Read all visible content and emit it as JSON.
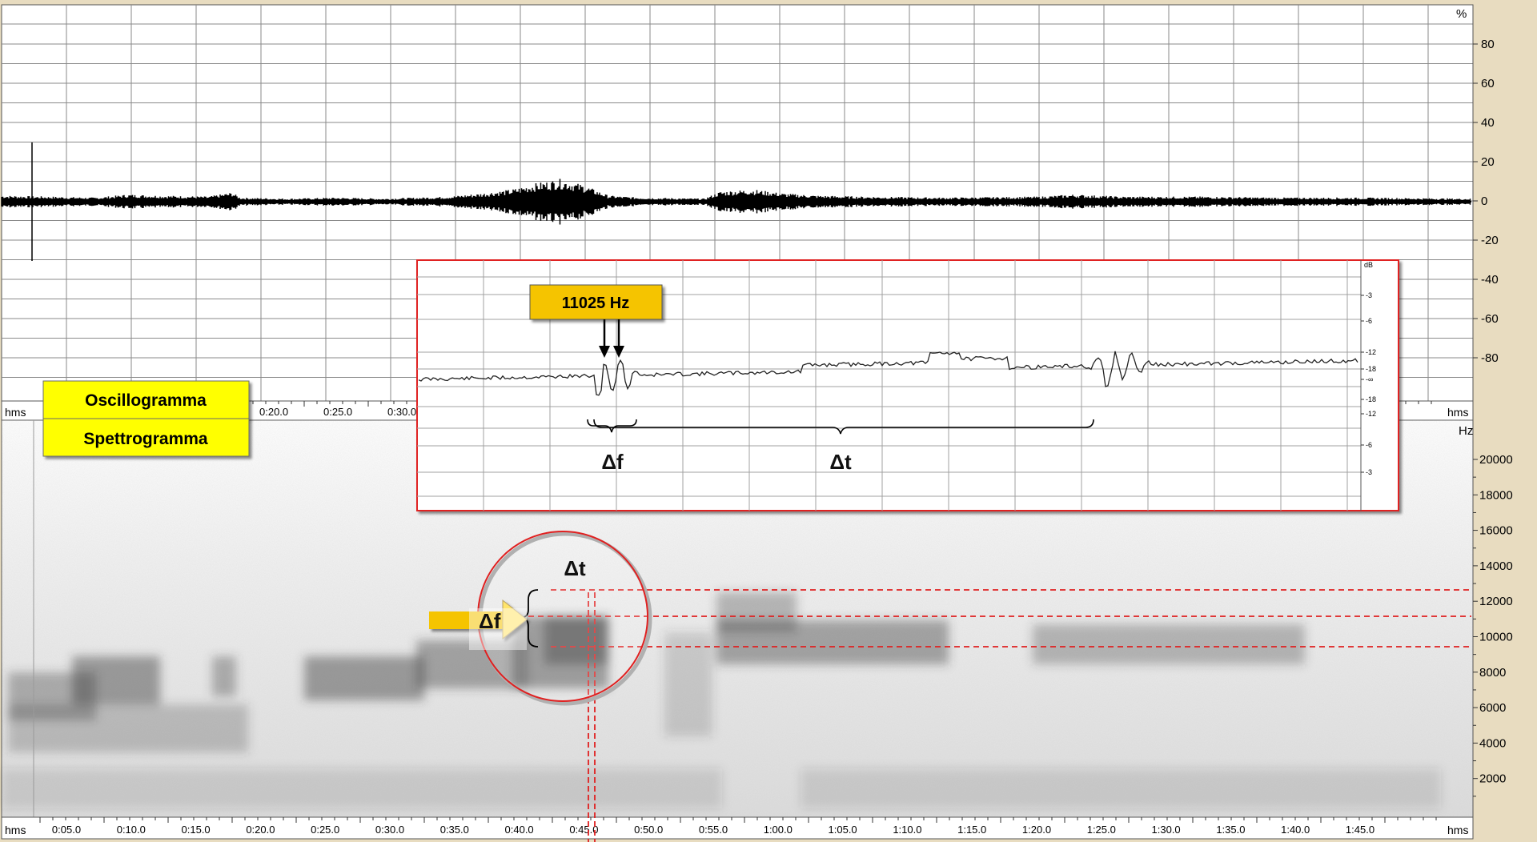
{
  "oscillogram": {
    "amplitude_unit": "%",
    "amplitude_ticks": [
      "80",
      "60",
      "40",
      "20",
      "0",
      "-20",
      "-40",
      "-60",
      "-80"
    ],
    "time_unit": "hms",
    "time_ticks": [
      "0:20.0",
      "0:25.0",
      "0:30.0"
    ]
  },
  "spectrogram": {
    "frequency_unit": "Hz",
    "frequency_ticks": [
      "20000",
      "18000",
      "16000",
      "14000",
      "12000",
      "10000",
      "8000",
      "6000",
      "4000",
      "2000"
    ],
    "time_unit": "hms",
    "time_ticks": [
      "0:05.0",
      "0:10.0",
      "0:15.0",
      "0:20.0",
      "0:25.0",
      "0:30.0",
      "0:35.0",
      "0:40.0",
      "0:45.0",
      "0:50.0",
      "0:55.0",
      "1:00.0",
      "1:05.0",
      "1:10.0",
      "1:15.0",
      "1:20.0",
      "1:25.0",
      "1:30.0",
      "1:35.0",
      "1:40.0",
      "1:45.0"
    ]
  },
  "labels": {
    "oscillogram": "Oscillogramma",
    "spectrogram": "Spettrogramma"
  },
  "inset": {
    "db_unit": "dB",
    "db_ticks": [
      "-3",
      "-6",
      "-12",
      "-18",
      "-∞",
      "-18",
      "-12",
      "-6",
      "-3"
    ],
    "frequency_callout": "11025 Hz",
    "delta_f": "Δf",
    "delta_t": "Δt"
  },
  "annotations": {
    "delta_t": "Δt",
    "delta_f": "Δf"
  },
  "colors": {
    "frame": "#e8dcc0",
    "grid": "#8a8a8a",
    "label_fill": "#ffff00",
    "callout_fill": "#f5c400",
    "accent_red": "#e02020"
  }
}
